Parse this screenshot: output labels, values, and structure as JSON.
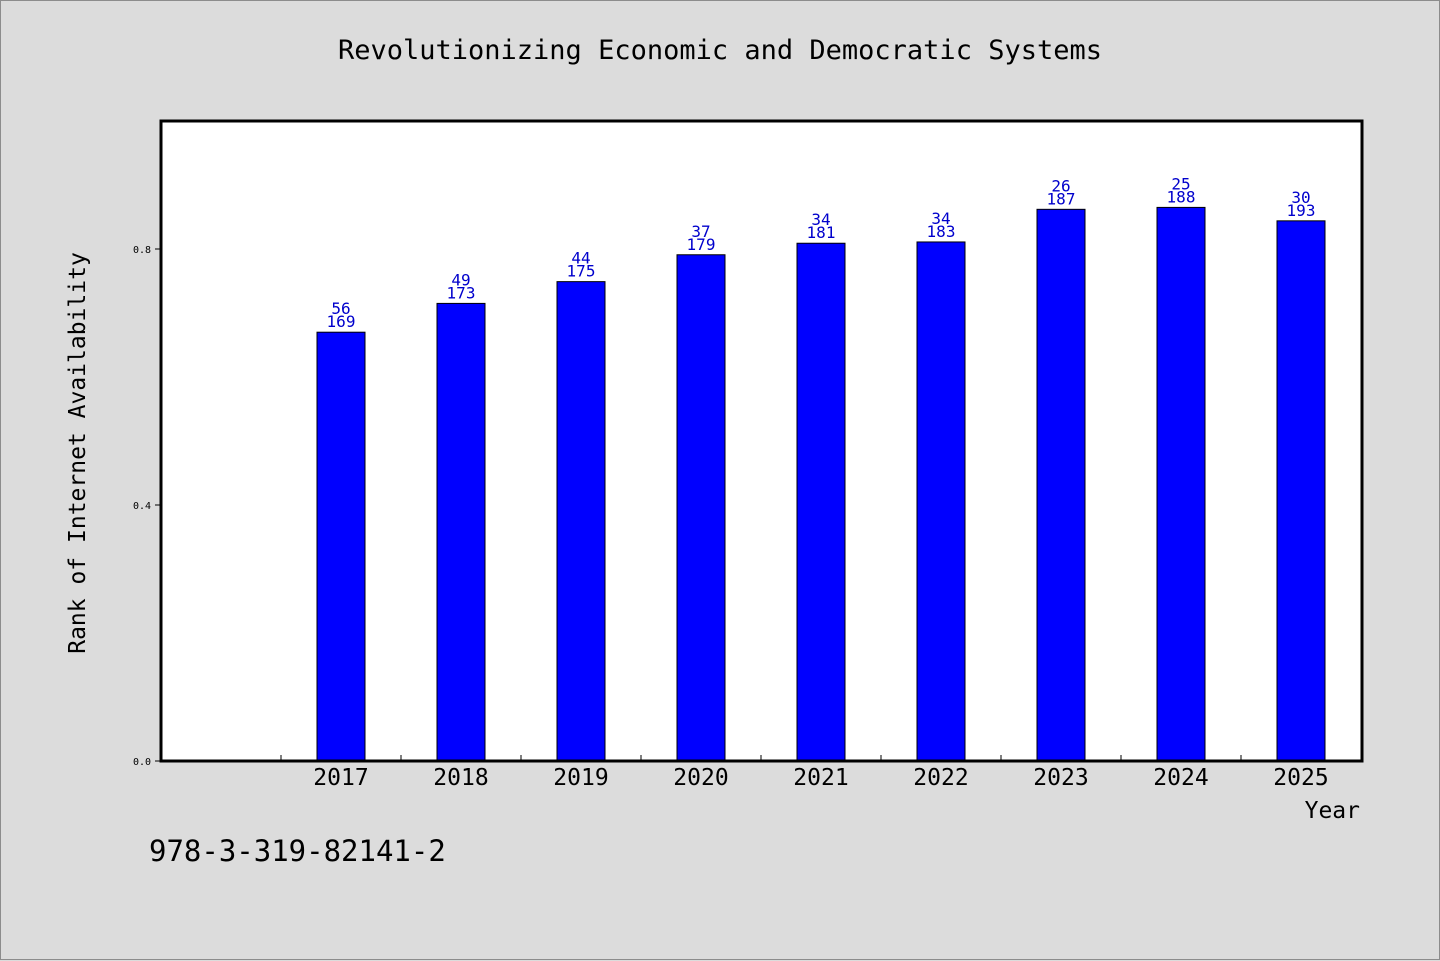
{
  "chart_data": {
    "type": "bar",
    "title": "Revolutionizing Economic and Democratic Systems",
    "xlabel": "Year",
    "ylabel": "Rank of Internet Availability",
    "categories": [
      "2017",
      "2018",
      "2019",
      "2020",
      "2021",
      "2022",
      "2023",
      "2024",
      "2025"
    ],
    "values": [
      0.67,
      0.715,
      0.749,
      0.791,
      0.809,
      0.811,
      0.862,
      0.865,
      0.844
    ],
    "data_labels": [
      {
        "top": "56",
        "bottom": "169"
      },
      {
        "top": "49",
        "bottom": "173"
      },
      {
        "top": "44",
        "bottom": "175"
      },
      {
        "top": "37",
        "bottom": "179"
      },
      {
        "top": "34",
        "bottom": "181"
      },
      {
        "top": "34",
        "bottom": "183"
      },
      {
        "top": "26",
        "bottom": "187"
      },
      {
        "top": "25",
        "bottom": "188"
      },
      {
        "top": "30",
        "bottom": "193"
      }
    ],
    "yticks": [
      "0.0",
      "0.4",
      "0.8"
    ],
    "ytick_values": [
      0.0,
      0.4,
      0.8
    ],
    "ylim": [
      0,
      1.0
    ],
    "grid": false,
    "colors": {
      "bar": "#0000ff",
      "bar_edge": "#000000",
      "label": "#0000cc",
      "plot_bg": "#ffffff",
      "page_bg": "#dcdcdc"
    }
  },
  "footnote": "978-3-319-82141-2"
}
